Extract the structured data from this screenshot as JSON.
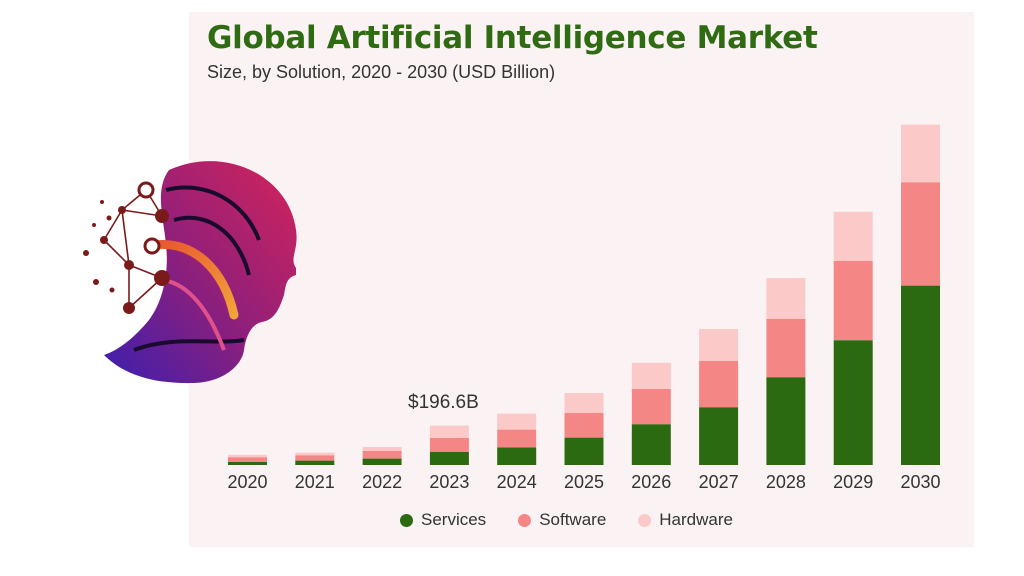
{
  "title": "Global Artificial Intelligence Market",
  "subtitle": "Size, by Solution, 2020 - 2030 (USD Billion)",
  "annotation": "$196.6B",
  "colors": {
    "services": "#2b6a10",
    "software": "#f58686",
    "hardware": "#fcc9c9",
    "title": "#2e6b12",
    "background": "#fbf3f3"
  },
  "chart_data": {
    "type": "bar",
    "stacked": true,
    "title": "Global Artificial Intelligence Market",
    "subtitle": "Size, by Solution, 2020 - 2030 (USD Billion)",
    "categories": [
      "2020",
      "2021",
      "2022",
      "2023",
      "2024",
      "2025",
      "2026",
      "2027",
      "2028",
      "2029",
      "2030"
    ],
    "series": [
      {
        "name": "Services",
        "values": [
          16,
          22,
          32,
          65,
          88,
          137,
          204,
          289,
          439,
          624,
          897
        ]
      },
      {
        "name": "Software",
        "values": [
          23,
          27,
          38,
          70,
          89,
          123,
          176,
          231,
          292,
          397,
          517
        ]
      },
      {
        "name": "Hardware",
        "values": [
          12,
          13,
          20,
          62,
          80,
          100,
          131,
          160,
          204,
          245,
          288
        ]
      }
    ],
    "annotations": [
      {
        "category": "2023",
        "text": "$196.6B"
      }
    ],
    "legend_position": "bottom",
    "grid": false,
    "ylim": [
      0,
      1750
    ]
  },
  "legend": [
    {
      "label": "Services",
      "color": "#2b6a10"
    },
    {
      "label": "Software",
      "color": "#f58686"
    },
    {
      "label": "Hardware",
      "color": "#fcc9c9"
    }
  ],
  "logo": {
    "icon": "ai-head-icon"
  }
}
